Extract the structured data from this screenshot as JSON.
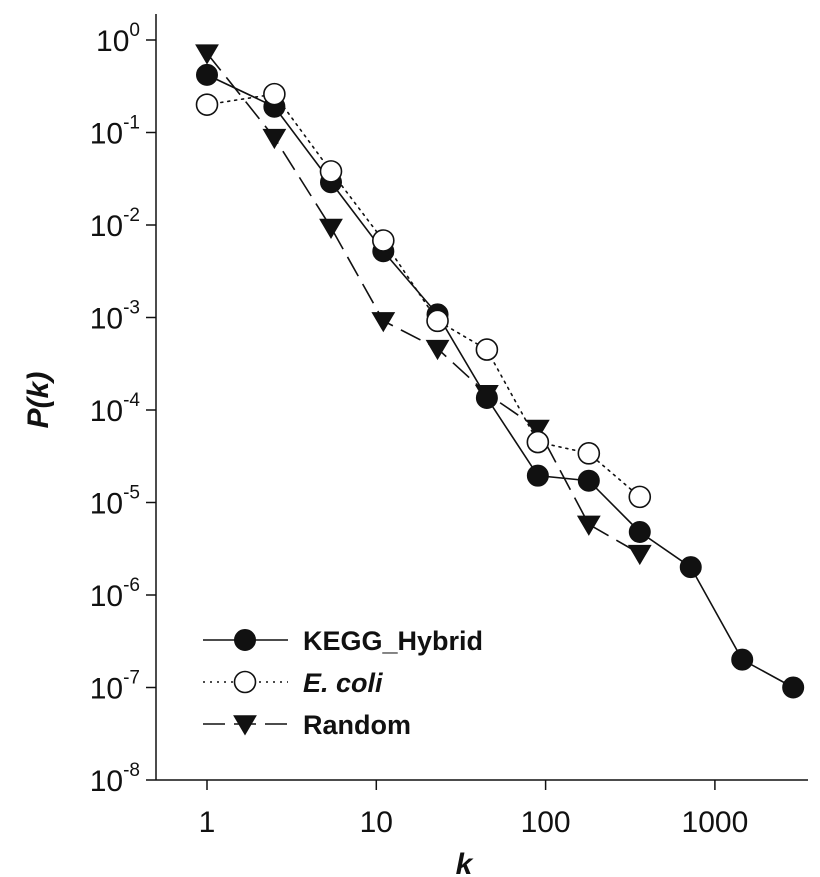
{
  "chart_data": {
    "type": "line",
    "xlabel": "k",
    "ylabel": "P(k)",
    "x_scale": "log",
    "y_scale": "log",
    "xlim": [
      0.5,
      5000
    ],
    "ylim": [
      1e-08,
      2.0
    ],
    "x_ticks": [
      {
        "value": 1,
        "label": "1"
      },
      {
        "value": 10,
        "label": "10"
      },
      {
        "value": 100,
        "label": "100"
      },
      {
        "value": 1000,
        "label": "1000"
      }
    ],
    "y_ticks": [
      {
        "value": 1,
        "base": "10",
        "exp": "0"
      },
      {
        "value": 0.1,
        "base": "10",
        "exp": "-1"
      },
      {
        "value": 0.01,
        "base": "10",
        "exp": "-2"
      },
      {
        "value": 0.001,
        "base": "10",
        "exp": "-3"
      },
      {
        "value": 0.0001,
        "base": "10",
        "exp": "-4"
      },
      {
        "value": 1e-05,
        "base": "10",
        "exp": "-5"
      },
      {
        "value": 1e-06,
        "base": "10",
        "exp": "-6"
      },
      {
        "value": 1e-07,
        "base": "10",
        "exp": "-7"
      },
      {
        "value": 1e-08,
        "base": "10",
        "exp": "-8"
      }
    ],
    "grid": false,
    "legend_position": "bottom-left",
    "series": [
      {
        "name": "KEGG_Hybrid",
        "italic": false,
        "marker": "filled-circle",
        "line_style": "solid",
        "color": "#111111",
        "x": [
          1,
          2.5,
          5.4,
          11,
          23,
          45,
          90,
          180,
          360,
          720,
          1450,
          2900
        ],
        "y": [
          0.42,
          0.19,
          0.029,
          0.0052,
          0.00108,
          0.000135,
          1.95e-05,
          1.72e-05,
          4.8e-06,
          2e-06,
          2e-07,
          1e-07
        ]
      },
      {
        "name": "E. coli",
        "italic": true,
        "marker": "open-circle",
        "line_style": "dotted",
        "color": "#111111",
        "x": [
          1,
          2.5,
          5.4,
          11,
          23,
          45,
          90,
          180,
          360
        ],
        "y": [
          0.2,
          0.26,
          0.038,
          0.0068,
          0.00092,
          0.00045,
          4.5e-05,
          3.4e-05,
          1.15e-05
        ]
      },
      {
        "name": "Random",
        "italic": false,
        "marker": "filled-triangle-down",
        "line_style": "dashed",
        "color": "#111111",
        "x": [
          1,
          2.5,
          5.4,
          11,
          23,
          45,
          90,
          180,
          360
        ],
        "y": [
          0.72,
          0.088,
          0.0094,
          0.00092,
          0.00046,
          0.00015,
          6.3e-05,
          5.8e-06,
          2.8e-06
        ]
      }
    ]
  }
}
